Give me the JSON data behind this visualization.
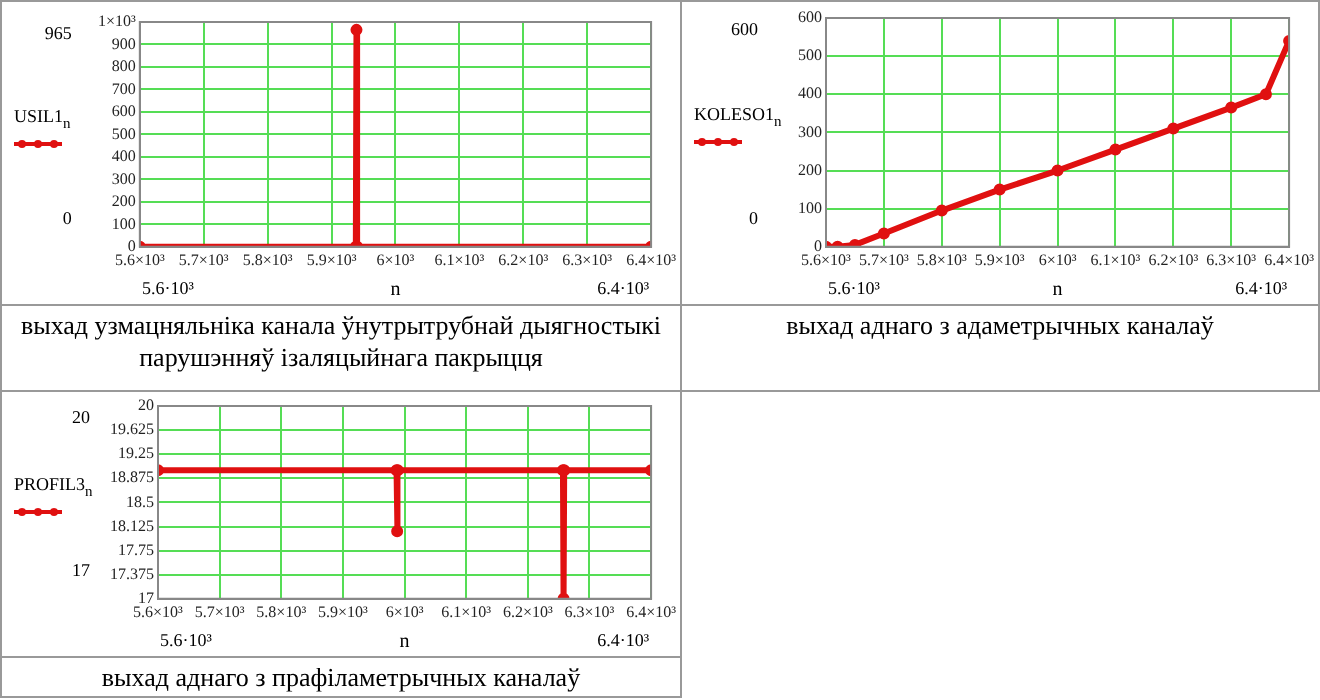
{
  "chart_data": [
    {
      "type": "line",
      "xlabel": "n",
      "legend": "left",
      "marker": "circle",
      "grid": true,
      "xlim": [
        5600,
        6400
      ],
      "xticks": [
        {
          "value": 5600,
          "label": "5.6×10³"
        },
        {
          "value": 5700,
          "label": "5.7×10³"
        },
        {
          "value": 5800,
          "label": "5.8×10³"
        },
        {
          "value": 5900,
          "label": "5.9×10³"
        },
        {
          "value": 6000,
          "label": "6×10³"
        },
        {
          "value": 6100,
          "label": "6.1×10³"
        },
        {
          "value": 6200,
          "label": "6.2×10³"
        },
        {
          "value": 6300,
          "label": "6.3×10³"
        },
        {
          "value": 6400,
          "label": "6.4×10³"
        }
      ],
      "ylim": [
        0,
        1000
      ],
      "yticks": [
        0,
        100,
        200,
        300,
        400,
        500,
        600,
        700,
        800,
        900,
        {
          "value": 1000,
          "label": "1×10³"
        }
      ],
      "x": [
        5600,
        5938,
        5939,
        5940,
        6400
      ],
      "series": [
        {
          "name": "USIL1$_{n}$",
          "color": "#e01010",
          "values": [
            0,
            0,
            965,
            0,
            0
          ]
        }
      ],
      "annotations": [
        "965",
        "0",
        "5.6·10³",
        "6.4·10³",
        "выхад узмацняльніка канала ўнутрытрубнай дыягностыкі парушэнняў ізаляцыйнага пакрыцця"
      ]
    },
    {
      "type": "line",
      "xlabel": "n",
      "legend": "left",
      "marker": "circle",
      "grid": true,
      "xlim": [
        5600,
        6400
      ],
      "xticks": [
        {
          "value": 5600,
          "label": "5.6×10³"
        },
        {
          "value": 5700,
          "label": "5.7×10³"
        },
        {
          "value": 5800,
          "label": "5.8×10³"
        },
        {
          "value": 5900,
          "label": "5.9×10³"
        },
        {
          "value": 6000,
          "label": "6×10³"
        },
        {
          "value": 6100,
          "label": "6.1×10³"
        },
        {
          "value": 6200,
          "label": "6.2×10³"
        },
        {
          "value": 6300,
          "label": "6.3×10³"
        },
        {
          "value": 6400,
          "label": "6.4×10³"
        }
      ],
      "ylim": [
        0,
        600
      ],
      "yticks": [
        0,
        100,
        200,
        300,
        400,
        500,
        600
      ],
      "x": [
        5600,
        5620,
        5650,
        5700,
        5800,
        5900,
        6000,
        6100,
        6200,
        6300,
        6360,
        6400
      ],
      "series": [
        {
          "name": "KOLESO1$_{n}$",
          "color": "#e01010",
          "values": [
            0,
            0,
            5,
            35,
            95,
            150,
            200,
            255,
            310,
            365,
            400,
            540
          ]
        }
      ],
      "annotations": [
        "600",
        "0",
        "5.6·10³",
        "6.4·10³",
        "выхад аднаго з адаметрычных каналаў"
      ]
    },
    {
      "type": "line",
      "xlabel": "n",
      "legend": "left",
      "marker": "circle",
      "grid": true,
      "xlim": [
        5600,
        6400
      ],
      "xticks": [
        {
          "value": 5600,
          "label": "5.6×10³"
        },
        {
          "value": 5700,
          "label": "5.7×10³"
        },
        {
          "value": 5800,
          "label": "5.8×10³"
        },
        {
          "value": 5900,
          "label": "5.9×10³"
        },
        {
          "value": 6000,
          "label": "6×10³"
        },
        {
          "value": 6100,
          "label": "6.1×10³"
        },
        {
          "value": 6200,
          "label": "6.2×10³"
        },
        {
          "value": 6300,
          "label": "6.3×10³"
        },
        {
          "value": 6400,
          "label": "6.4×10³"
        }
      ],
      "ylim": [
        17,
        20
      ],
      "yticks": [
        17,
        17.375,
        17.75,
        18.125,
        18.5,
        18.875,
        19.25,
        19.625,
        20
      ],
      "x": [
        5600,
        5987,
        5988,
        5989,
        6257,
        6258,
        6259,
        6400
      ],
      "series": [
        {
          "name": "PROFIL3$_{n}$",
          "color": "#e01010",
          "values": [
            19,
            19,
            18.05,
            19,
            19,
            17,
            19,
            19
          ]
        }
      ],
      "annotations": [
        "20",
        "17",
        "5.6·10³",
        "6.4·10³",
        "выхад аднаго з прафіламетрычных каналаў"
      ]
    }
  ]
}
